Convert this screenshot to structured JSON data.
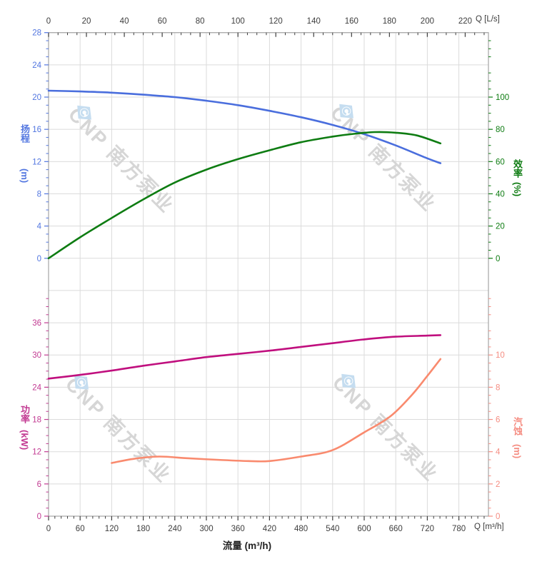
{
  "watermark": {
    "text": "CNP 南方泵业",
    "logo_color": "#c5ddf0",
    "text_color": "#d6d6d6"
  },
  "labels": {
    "top_axis_unit": "Q [L/s]",
    "bottom_axis_unit": "Q [m³/h]",
    "bottom_axis_title": "流量 (m³/h)"
  },
  "chart_data": {
    "type": "line",
    "title": "",
    "grid": {
      "on": true,
      "color": "#dbdbdb",
      "border_color": "#a5a5a5"
    },
    "x_axis_top": {
      "label": "Q [L/s]",
      "min": 0,
      "max": 220,
      "tick_step": 20,
      "minor_step": 5,
      "minor_max": 230,
      "color": "#3d3d3d"
    },
    "x_axis_bottom": {
      "label": "Q [m³/h]",
      "title": "流量 (m³/h)",
      "min": 0,
      "max": 780,
      "tick_step": 60,
      "minor_step": 12,
      "minor_max": 828,
      "color": "#3d3d3d"
    },
    "y_axes": [
      {
        "id": "head",
        "title": "扬程",
        "unit": "(m)",
        "side": "left",
        "section": "top",
        "min": 0,
        "max": 28,
        "tick_step": 4,
        "minor_step": 1,
        "minor_max": 27,
        "color": "#5276e0",
        "label_color": "#5276e0"
      },
      {
        "id": "eff",
        "title": "效率",
        "unit": "(%)",
        "side": "right",
        "section": "top",
        "min": 0,
        "max": 100,
        "tick_step": 20,
        "minor_step": 5,
        "minor_max": 135,
        "color": "#0e7c12",
        "label_color": "#0e7c12"
      },
      {
        "id": "power",
        "title": "功率",
        "unit": "(kW)",
        "side": "left",
        "section": "bottom",
        "min": 0,
        "max": 36,
        "tick_step": 6,
        "minor_step": 1.5,
        "minor_max": 40.5,
        "color": "#c23a92",
        "label_color": "#c23a92"
      },
      {
        "id": "npsh",
        "title": "汽蚀",
        "unit": "(m)",
        "side": "right",
        "section": "bottom",
        "min": 0,
        "max": 10,
        "tick_step": 2,
        "minor_step": 0.5,
        "minor_max": 13.5,
        "color": "#f58d82",
        "label_color": "#f58d82"
      }
    ],
    "series": [
      {
        "name": "head",
        "axis": "head",
        "color": "#4a6edd",
        "x_unit": "m³/h",
        "points": [
          [
            0,
            20.8
          ],
          [
            60,
            20.7
          ],
          [
            120,
            20.55
          ],
          [
            180,
            20.3
          ],
          [
            240,
            20.0
          ],
          [
            300,
            19.55
          ],
          [
            360,
            19.0
          ],
          [
            420,
            18.3
          ],
          [
            480,
            17.5
          ],
          [
            540,
            16.55
          ],
          [
            600,
            15.4
          ],
          [
            660,
            14.0
          ],
          [
            720,
            12.4
          ],
          [
            745,
            11.8
          ]
        ]
      },
      {
        "name": "efficiency",
        "axis": "eff",
        "color": "#0e7c12",
        "x_unit": "m³/h",
        "points": [
          [
            0,
            0
          ],
          [
            60,
            13
          ],
          [
            120,
            25
          ],
          [
            180,
            36.5
          ],
          [
            240,
            47
          ],
          [
            300,
            55
          ],
          [
            360,
            61.5
          ],
          [
            420,
            67
          ],
          [
            480,
            72
          ],
          [
            540,
            75.5
          ],
          [
            580,
            77.2
          ],
          [
            620,
            78.3
          ],
          [
            660,
            77.9
          ],
          [
            700,
            76.2
          ],
          [
            745,
            71.3
          ]
        ]
      },
      {
        "name": "power",
        "axis": "power",
        "color": "#c00f7e",
        "x_unit": "m³/h",
        "points": [
          [
            0,
            25.6
          ],
          [
            60,
            26.3
          ],
          [
            120,
            27.1
          ],
          [
            180,
            28.0
          ],
          [
            240,
            28.8
          ],
          [
            300,
            29.6
          ],
          [
            360,
            30.2
          ],
          [
            420,
            30.8
          ],
          [
            480,
            31.5
          ],
          [
            540,
            32.2
          ],
          [
            600,
            32.9
          ],
          [
            660,
            33.4
          ],
          [
            720,
            33.6
          ],
          [
            745,
            33.7
          ]
        ]
      },
      {
        "name": "npsh",
        "axis": "npsh",
        "color": "#f98a6e",
        "x_unit": "m³/h",
        "points": [
          [
            120,
            3.3
          ],
          [
            160,
            3.55
          ],
          [
            210,
            3.7
          ],
          [
            260,
            3.6
          ],
          [
            320,
            3.5
          ],
          [
            380,
            3.42
          ],
          [
            420,
            3.42
          ],
          [
            480,
            3.7
          ],
          [
            540,
            4.1
          ],
          [
            600,
            5.2
          ],
          [
            650,
            6.2
          ],
          [
            690,
            7.5
          ],
          [
            720,
            8.7
          ],
          [
            745,
            9.75
          ]
        ]
      }
    ]
  }
}
